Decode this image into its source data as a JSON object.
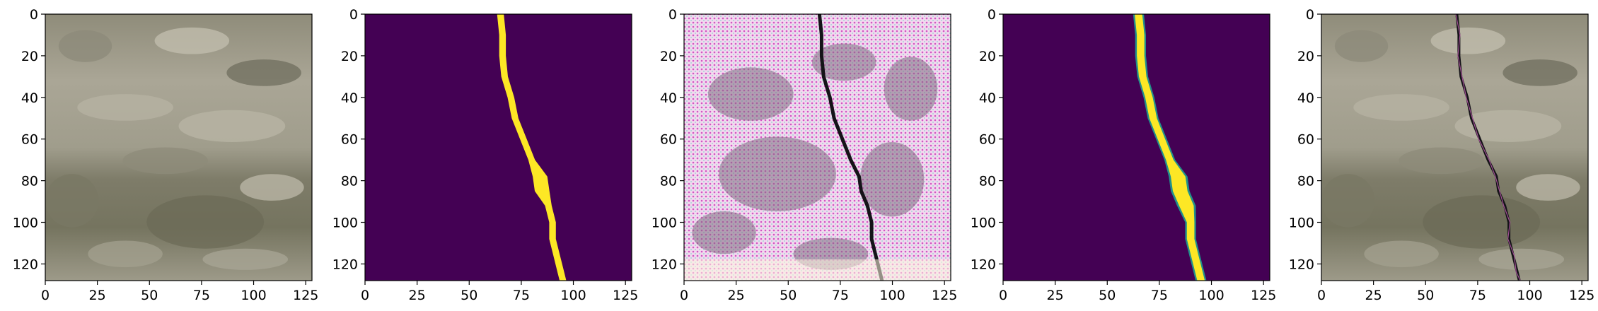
{
  "figure": {
    "panels": [
      {
        "id": "input-image",
        "kind": "photo"
      },
      {
        "id": "ground-truth-mask",
        "kind": "binary-mask"
      },
      {
        "id": "generated-image",
        "kind": "noisy-photo"
      },
      {
        "id": "predicted-mask",
        "kind": "soft-mask"
      },
      {
        "id": "overlay-image",
        "kind": "photo-overlay"
      }
    ],
    "x_ticks": [
      "0",
      "25",
      "50",
      "75",
      "100",
      "125"
    ],
    "y_ticks": [
      "0",
      "20",
      "40",
      "60",
      "80",
      "100",
      "120"
    ],
    "axis_range": [
      0,
      128
    ],
    "colors": {
      "mask_background": "#440154",
      "mask_foreground": "#fde725",
      "soft_edge": "#21918c",
      "concrete": "#a9a595",
      "concrete_dark": "#6e6d5a",
      "crack": "#151318"
    }
  }
}
